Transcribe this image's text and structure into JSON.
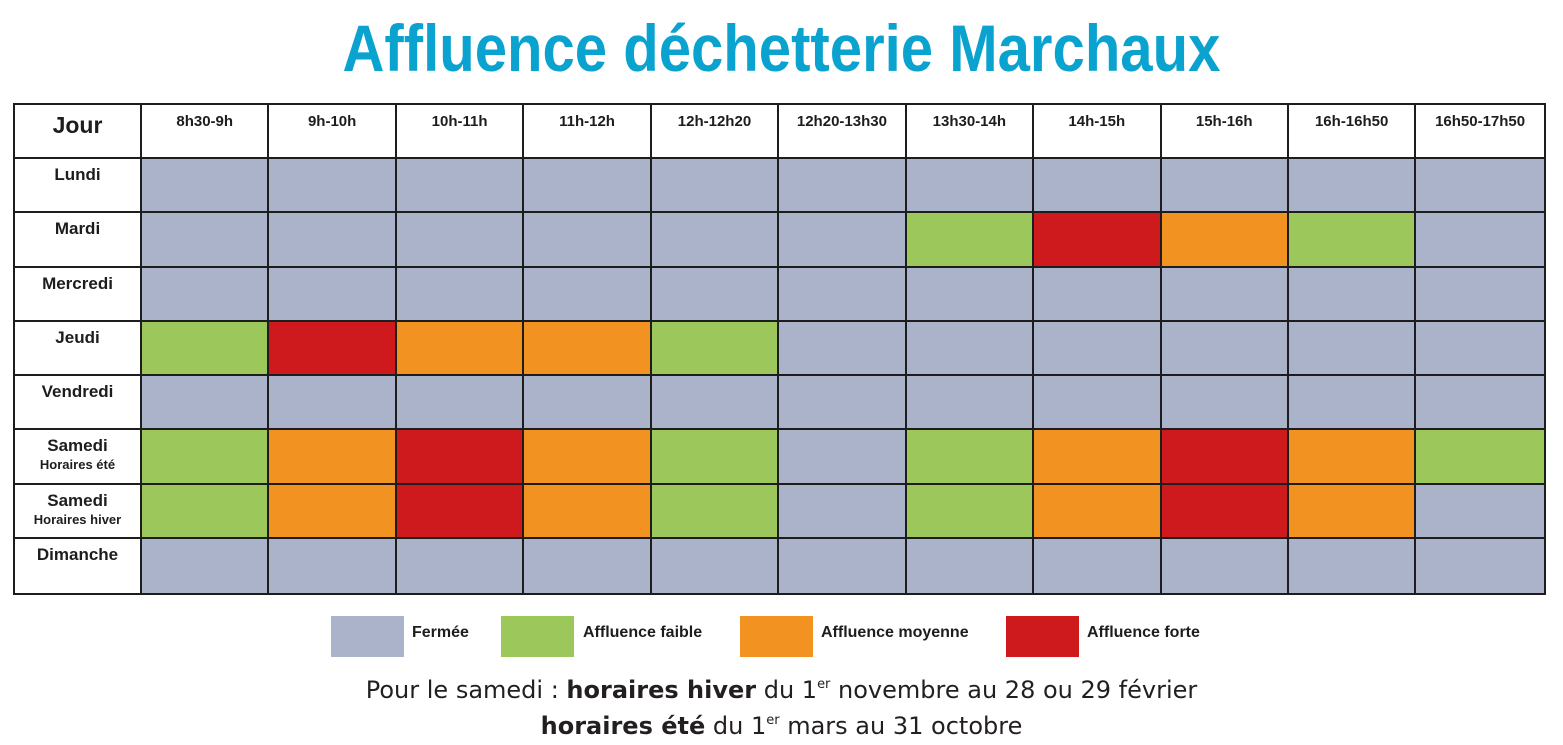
{
  "title": "Affluence déchetterie Marchaux",
  "chart_data": {
    "type": "heatmap",
    "corner_label": "Jour",
    "columns": [
      "8h30-9h",
      "9h-10h",
      "10h-11h",
      "11h-12h",
      "12h-12h20",
      "12h20-13h30",
      "13h30-14h",
      "14h-15h",
      "15h-16h",
      "16h-16h50",
      "16h50-17h50"
    ],
    "rows": [
      {
        "label": "Lundi",
        "sub": "",
        "values": [
          "F",
          "F",
          "F",
          "F",
          "F",
          "F",
          "F",
          "F",
          "F",
          "F",
          "F"
        ]
      },
      {
        "label": "Mardi",
        "sub": "",
        "values": [
          "F",
          "F",
          "F",
          "F",
          "F",
          "F",
          "L",
          "H",
          "M",
          "L",
          "F"
        ]
      },
      {
        "label": "Mercredi",
        "sub": "",
        "values": [
          "F",
          "F",
          "F",
          "F",
          "F",
          "F",
          "F",
          "F",
          "F",
          "F",
          "F"
        ]
      },
      {
        "label": "Jeudi",
        "sub": "",
        "values": [
          "L",
          "H",
          "M",
          "M",
          "L",
          "F",
          "F",
          "F",
          "F",
          "F",
          "F"
        ]
      },
      {
        "label": "Vendredi",
        "sub": "",
        "values": [
          "F",
          "F",
          "F",
          "F",
          "F",
          "F",
          "F",
          "F",
          "F",
          "F",
          "F"
        ]
      },
      {
        "label": "Samedi",
        "sub": "Horaires été",
        "values": [
          "L",
          "M",
          "H",
          "M",
          "L",
          "F",
          "L",
          "M",
          "H",
          "M",
          "L"
        ]
      },
      {
        "label": "Samedi",
        "sub": "Horaires hiver",
        "values": [
          "L",
          "M",
          "H",
          "M",
          "L",
          "F",
          "L",
          "M",
          "H",
          "M",
          "F"
        ]
      },
      {
        "label": "Dimanche",
        "sub": "",
        "values": [
          "F",
          "F",
          "F",
          "F",
          "F",
          "F",
          "F",
          "F",
          "F",
          "F",
          "F"
        ]
      }
    ],
    "legend": [
      {
        "key": "F",
        "label": "Fermée",
        "color": "#abb3ca"
      },
      {
        "key": "L",
        "label": "Affluence faible",
        "color": "#9cc75b"
      },
      {
        "key": "M",
        "label": "Affluence moyenne",
        "color": "#f29220"
      },
      {
        "key": "H",
        "label": "Affluence forte",
        "color": "#cf1a1d"
      }
    ]
  },
  "note": {
    "line1_prefix": "Pour le samedi : ",
    "line1_bold": "horaires hiver",
    "line1_mid": " du 1",
    "line1_sup": "er",
    "line1_end": " novembre au 28 ou 29 février",
    "line2_bold": "horaires été",
    "line2_mid": " du 1",
    "line2_sup": "er",
    "line2_end": " mars au 31 octobre"
  }
}
